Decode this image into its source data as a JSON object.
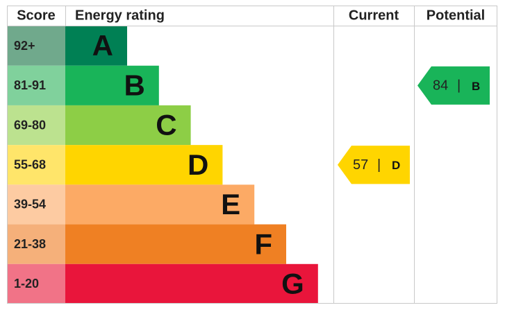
{
  "header": {
    "score": "Score",
    "rating": "Energy rating",
    "current": "Current",
    "potential": "Potential"
  },
  "bands": [
    {
      "range": "92+",
      "letter": "A",
      "color": "#008054",
      "tint": "#70a98c"
    },
    {
      "range": "81-91",
      "letter": "B",
      "color": "#19b459",
      "tint": "#80d19c"
    },
    {
      "range": "69-80",
      "letter": "C",
      "color": "#8dce46",
      "tint": "#bce28f"
    },
    {
      "range": "55-68",
      "letter": "D",
      "color": "#ffd500",
      "tint": "#ffe56a"
    },
    {
      "range": "39-54",
      "letter": "E",
      "color": "#fcaa65",
      "tint": "#fdcba2"
    },
    {
      "range": "21-38",
      "letter": "F",
      "color": "#ef8023",
      "tint": "#f5b07a"
    },
    {
      "range": "1-20",
      "letter": "G",
      "color": "#e9153b",
      "tint": "#f17387"
    }
  ],
  "separator": "|",
  "current": {
    "score": "57",
    "rating": "D"
  },
  "potential": {
    "score": "84",
    "rating": "B"
  }
}
